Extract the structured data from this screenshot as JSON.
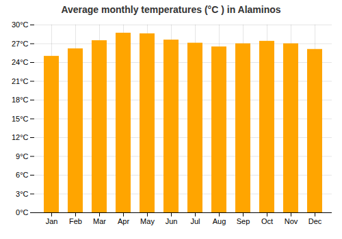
{
  "chart_data": {
    "type": "bar",
    "title": "Average monthly temperatures (°C ) in Alaminos",
    "categories": [
      "Jan",
      "Feb",
      "Mar",
      "Apr",
      "May",
      "Jun",
      "Jul",
      "Aug",
      "Sep",
      "Oct",
      "Nov",
      "Dec"
    ],
    "values": [
      25.0,
      26.2,
      27.5,
      28.7,
      28.6,
      27.6,
      27.1,
      26.5,
      27.0,
      27.4,
      27.0,
      26.1
    ],
    "color": "#FFA500",
    "ylim": [
      0,
      30
    ],
    "yticks": [
      {
        "value": 0,
        "label": "0°C"
      },
      {
        "value": 3,
        "label": "3°C"
      },
      {
        "value": 6,
        "label": "6°C"
      },
      {
        "value": 9,
        "label": "9°C"
      },
      {
        "value": 12,
        "label": "12°C"
      },
      {
        "value": 15,
        "label": "15°C"
      },
      {
        "value": 18,
        "label": "18°C"
      },
      {
        "value": 21,
        "label": "21°C"
      },
      {
        "value": 24,
        "label": "24°C"
      },
      {
        "value": 27,
        "label": "27°C"
      },
      {
        "value": 30,
        "label": "30°C"
      }
    ],
    "grid": true
  }
}
